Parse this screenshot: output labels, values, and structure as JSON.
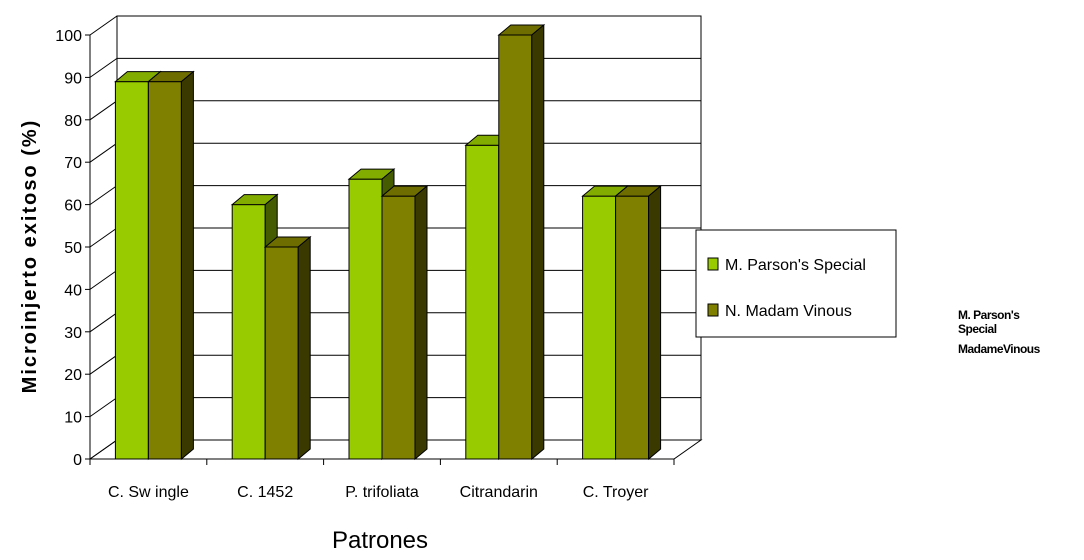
{
  "chart_data": {
    "type": "bar",
    "title": "",
    "xlabel": "Patrones",
    "ylabel": "Microinjerto exitoso (%)",
    "categories": [
      "C. Sw ingle",
      "C. 1452",
      "P. trifoliata",
      "Citrandarin",
      "C. Troyer"
    ],
    "series": [
      {
        "name": "M. Parson's Special",
        "values": [
          89,
          60,
          66,
          74,
          62
        ],
        "color": "#99cc00"
      },
      {
        "name": "N. Madam Vinous",
        "values": [
          89,
          50,
          62,
          100,
          62
        ],
        "color": "#808000"
      }
    ],
    "ylim": [
      0,
      100
    ],
    "yticks": [
      0,
      10,
      20,
      30,
      40,
      50,
      60,
      70,
      80,
      90,
      100
    ],
    "grid": true,
    "legend": "right",
    "three_d": true
  },
  "stray_labels": {
    "line1": "M. Parson's",
    "line2": "Special",
    "line3": "MadameVinous"
  }
}
